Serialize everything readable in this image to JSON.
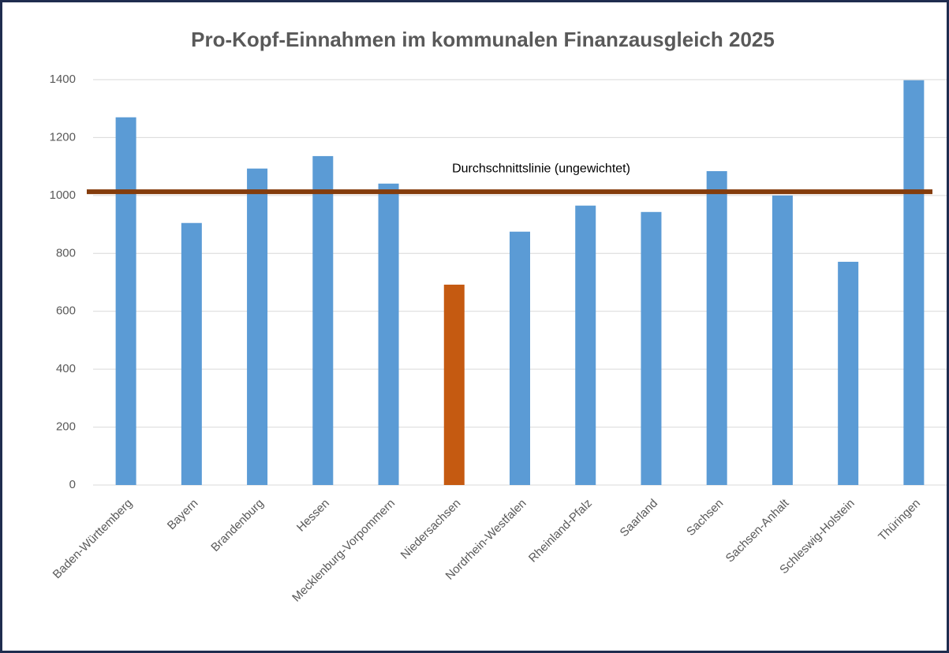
{
  "chart_data": {
    "type": "bar",
    "title": "Pro-Kopf-Einnahmen im kommunalen Finanzausgleich 2025",
    "categories": [
      "Baden-Württemberg",
      "Bayern",
      "Brandenburg",
      "Hessen",
      "Mecklenburg-Vorpommern",
      "Niedersachsen",
      "Nordrhein-Westfalen",
      "Rheinland-Pfalz",
      "Saarland",
      "Sachsen",
      "Sachsen-Anhalt",
      "Schleswig-Holstein",
      "Thüringen"
    ],
    "values": [
      1270,
      905,
      1093,
      1136,
      1041,
      692,
      875,
      965,
      943,
      1084,
      1000,
      771,
      1398
    ],
    "colors": [
      "#5b9bd5",
      "#5b9bd5",
      "#5b9bd5",
      "#5b9bd5",
      "#5b9bd5",
      "#c55a11",
      "#5b9bd5",
      "#5b9bd5",
      "#5b9bd5",
      "#5b9bd5",
      "#5b9bd5",
      "#5b9bd5",
      "#5b9bd5"
    ],
    "reference_line": {
      "label": "Durchschnittslinie (ungewichtet)",
      "value": 1013,
      "color": "#843c0c"
    },
    "ylim": [
      0,
      1400
    ],
    "yticks": [
      0,
      200,
      400,
      600,
      800,
      1000,
      1200,
      1400
    ],
    "grid": true
  }
}
